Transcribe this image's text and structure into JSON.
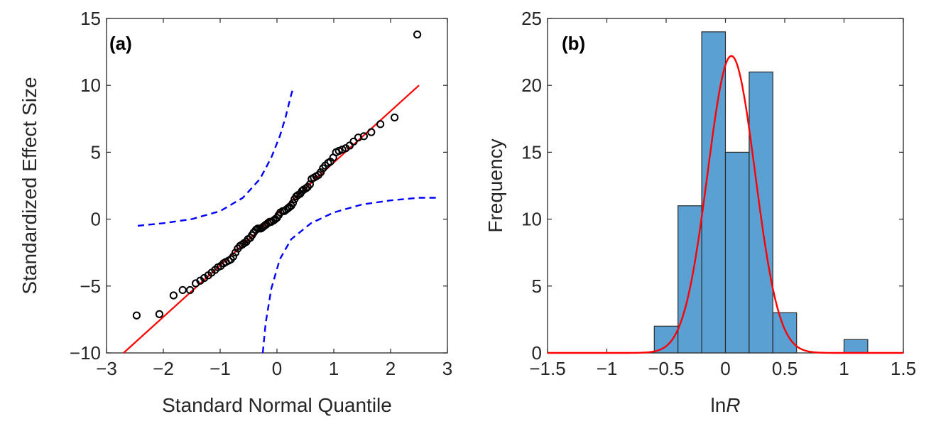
{
  "chart_data": [
    {
      "panel_label": "(a)",
      "type": "scatter",
      "xlabel": "Standard Normal Quantile",
      "ylabel": "Standardized Effect Size",
      "xlim": [
        -3,
        3
      ],
      "ylim": [
        -10,
        15
      ],
      "xticks": [
        -3,
        -2,
        -1,
        0,
        1,
        2,
        3
      ],
      "yticks": [
        -10,
        -5,
        0,
        5,
        10,
        15
      ],
      "xtick_labels": [
        "−3",
        "−2",
        "−1",
        "0",
        "1",
        "2",
        "3"
      ],
      "ytick_labels": [
        "−10",
        "−5",
        "0",
        "5",
        "10",
        "15"
      ],
      "grid": false,
      "colors": {
        "points": "#000000",
        "reference_line": "#ff0000",
        "confidence_bounds": "#0000ff"
      },
      "points": [
        [
          -2.47,
          -7.2
        ],
        [
          -2.07,
          -7.1
        ],
        [
          -1.82,
          -5.7
        ],
        [
          -1.66,
          -5.3
        ],
        [
          -1.53,
          -5.3
        ],
        [
          -1.43,
          -4.8
        ],
        [
          -1.35,
          -4.6
        ],
        [
          -1.28,
          -4.4
        ],
        [
          -1.21,
          -4.2
        ],
        [
          -1.15,
          -4.0
        ],
        [
          -1.09,
          -3.8
        ],
        [
          -1.04,
          -3.6
        ],
        [
          -0.99,
          -3.5
        ],
        [
          -0.94,
          -3.3
        ],
        [
          -0.9,
          -3.2
        ],
        [
          -0.85,
          -3.1
        ],
        [
          -0.81,
          -3.0
        ],
        [
          -0.77,
          -2.8
        ],
        [
          -0.73,
          -2.5
        ],
        [
          -0.69,
          -2.2
        ],
        [
          -0.65,
          -2.0
        ],
        [
          -0.61,
          -1.9
        ],
        [
          -0.58,
          -1.8
        ],
        [
          -0.54,
          -1.7
        ],
        [
          -0.51,
          -1.5
        ],
        [
          -0.47,
          -1.4
        ],
        [
          -0.44,
          -1.2
        ],
        [
          -0.41,
          -1.0
        ],
        [
          -0.37,
          -0.8
        ],
        [
          -0.34,
          -0.7
        ],
        [
          -0.31,
          -0.7
        ],
        [
          -0.28,
          -0.7
        ],
        [
          -0.25,
          -0.6
        ],
        [
          -0.22,
          -0.5
        ],
        [
          -0.19,
          -0.4
        ],
        [
          -0.16,
          -0.3
        ],
        [
          -0.13,
          -0.2
        ],
        [
          -0.1,
          -0.2
        ],
        [
          -0.06,
          -0.1
        ],
        [
          -0.03,
          0.0
        ],
        [
          0.0,
          0.1
        ],
        [
          0.03,
          0.3
        ],
        [
          0.06,
          0.5
        ],
        [
          0.1,
          0.6
        ],
        [
          0.13,
          0.6
        ],
        [
          0.16,
          0.7
        ],
        [
          0.19,
          0.8
        ],
        [
          0.22,
          0.9
        ],
        [
          0.25,
          1.0
        ],
        [
          0.28,
          1.2
        ],
        [
          0.31,
          1.5
        ],
        [
          0.34,
          1.7
        ],
        [
          0.37,
          1.8
        ],
        [
          0.41,
          1.9
        ],
        [
          0.44,
          2.1
        ],
        [
          0.47,
          2.2
        ],
        [
          0.51,
          2.3
        ],
        [
          0.54,
          2.4
        ],
        [
          0.58,
          2.6
        ],
        [
          0.61,
          3.0
        ],
        [
          0.65,
          3.1
        ],
        [
          0.69,
          3.2
        ],
        [
          0.73,
          3.3
        ],
        [
          0.77,
          3.5
        ],
        [
          0.81,
          3.8
        ],
        [
          0.85,
          4.0
        ],
        [
          0.9,
          4.2
        ],
        [
          0.94,
          4.3
        ],
        [
          0.99,
          4.6
        ],
        [
          1.04,
          5.0
        ],
        [
          1.09,
          5.1
        ],
        [
          1.15,
          5.2
        ],
        [
          1.21,
          5.3
        ],
        [
          1.28,
          5.5
        ],
        [
          1.35,
          5.8
        ],
        [
          1.43,
          6.1
        ],
        [
          1.53,
          6.2
        ],
        [
          1.66,
          6.5
        ],
        [
          1.82,
          7.1
        ],
        [
          2.07,
          7.6
        ],
        [
          2.47,
          13.8
        ]
      ],
      "reference_line": {
        "x": [
          -2.7,
          2.5
        ],
        "y": [
          -10,
          10
        ]
      },
      "confidence_bounds": {
        "upper": [
          [
            -2.45,
            -0.5
          ],
          [
            -2.0,
            -0.3
          ],
          [
            -1.5,
            0.0
          ],
          [
            -1.0,
            0.6
          ],
          [
            -0.6,
            1.6
          ],
          [
            -0.3,
            3.0
          ],
          [
            -0.1,
            4.6
          ],
          [
            0.05,
            6.2
          ],
          [
            0.15,
            7.6
          ],
          [
            0.25,
            9.3
          ],
          [
            0.28,
            9.7
          ]
        ],
        "lower": [
          [
            -0.25,
            -10
          ],
          [
            -0.2,
            -7.8
          ],
          [
            -0.1,
            -5.2
          ],
          [
            0.05,
            -3.0
          ],
          [
            0.25,
            -1.5
          ],
          [
            0.6,
            -0.3
          ],
          [
            1.0,
            0.5
          ],
          [
            1.5,
            1.1
          ],
          [
            2.0,
            1.4
          ],
          [
            2.5,
            1.6
          ],
          [
            2.85,
            1.6
          ]
        ]
      }
    },
    {
      "panel_label": "(b)",
      "type": "bar",
      "xlabel_main": "ln",
      "xlabel_italic": "R",
      "ylabel": "Frequency",
      "xlim": [
        -1.5,
        1.5
      ],
      "ylim": [
        0,
        25
      ],
      "xticks": [
        -1.5,
        -1,
        -0.5,
        0,
        0.5,
        1,
        1.5
      ],
      "yticks": [
        0,
        5,
        10,
        15,
        20,
        25
      ],
      "xtick_labels": [
        "−1.5",
        "−1",
        "−0.5",
        "0",
        "0.5",
        "1",
        "1.5"
      ],
      "ytick_labels": [
        "0",
        "5",
        "10",
        "15",
        "20",
        "25"
      ],
      "grid": false,
      "colors": {
        "bars": "#5aa0d2",
        "bar_edge": "#2b2b2b",
        "fit_curve": "#ff0000"
      },
      "bins": [
        {
          "start": -0.6,
          "end": -0.4,
          "count": 2
        },
        {
          "start": -0.4,
          "end": -0.2,
          "count": 11
        },
        {
          "start": -0.2,
          "end": 0.0,
          "count": 24
        },
        {
          "start": 0.0,
          "end": 0.2,
          "count": 15
        },
        {
          "start": 0.2,
          "end": 0.4,
          "count": 21
        },
        {
          "start": 0.4,
          "end": 0.6,
          "count": 3
        },
        {
          "start": 1.0,
          "end": 1.2,
          "count": 1
        }
      ],
      "fit_curve": {
        "type": "normal",
        "mean": 0.05,
        "peak": 22.2,
        "sd": 0.2
      }
    }
  ]
}
